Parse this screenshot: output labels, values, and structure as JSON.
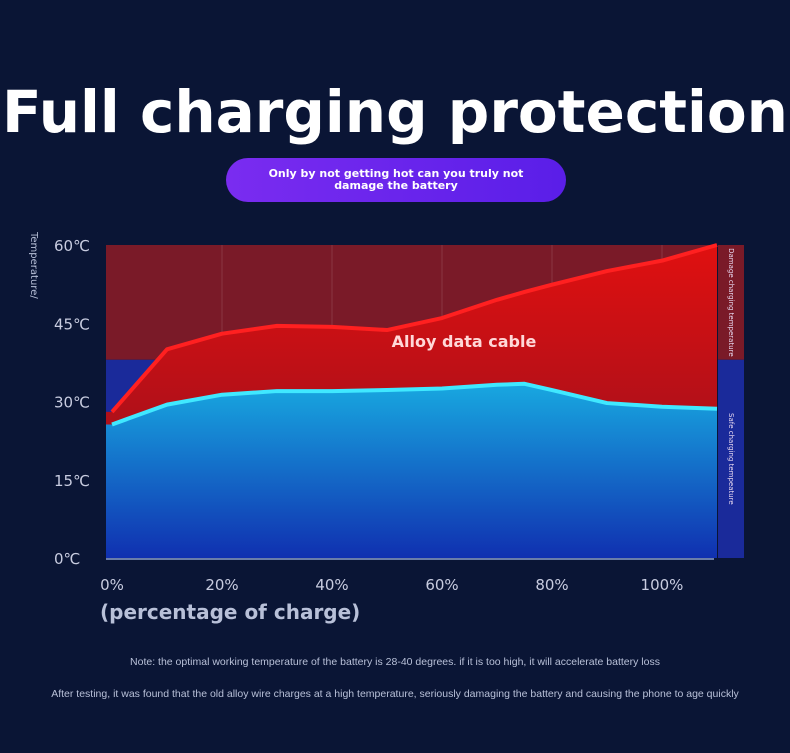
{
  "header": {
    "title": "Full charging protection",
    "subtitle": "Only by not getting hot can you truly not damage the battery"
  },
  "chart_data": {
    "type": "area",
    "ylabel": "Temperature/",
    "xlabel": "(percentage of charge)",
    "x_ticks": [
      "0%",
      "20%",
      "40%",
      "60%",
      "80%",
      "100%"
    ],
    "y_ticks": [
      "0℃",
      "15℃",
      "30℃",
      "45℃",
      "60℃"
    ],
    "xlim": [
      0,
      110
    ],
    "ylim": [
      0,
      60
    ],
    "zones": [
      {
        "label": "Damage charging temperature",
        "from": 38,
        "to": 60,
        "color": "#7a1a28"
      },
      {
        "label": "Safe charging tempeature",
        "from": 0,
        "to": 38,
        "color": "#1a2a9a"
      }
    ],
    "x": [
      0,
      10,
      20,
      30,
      40,
      50,
      60,
      70,
      75,
      80,
      90,
      100,
      110
    ],
    "series": [
      {
        "name": "Alloy data cable",
        "color": "#ff2020",
        "values": [
          28,
          40,
          43,
          44.5,
          44.3,
          43.7,
          46,
          49.5,
          51,
          52.4,
          55,
          57,
          60
        ]
      },
      {
        "color": "#40e8ff",
        "values": [
          25.6,
          29.4,
          31.3,
          32,
          32,
          32.2,
          32.5,
          33.2,
          33.4,
          32.2,
          29.7,
          29,
          28.6
        ]
      }
    ]
  },
  "notes": [
    "Note: the optimal working temperature of the battery is 28-40 degrees. if it is too high, it will accelerate battery loss",
    "After testing, it was found that the old alloy wire charges at a high temperature, seriously damaging the battery and causing the phone to age quickly"
  ]
}
